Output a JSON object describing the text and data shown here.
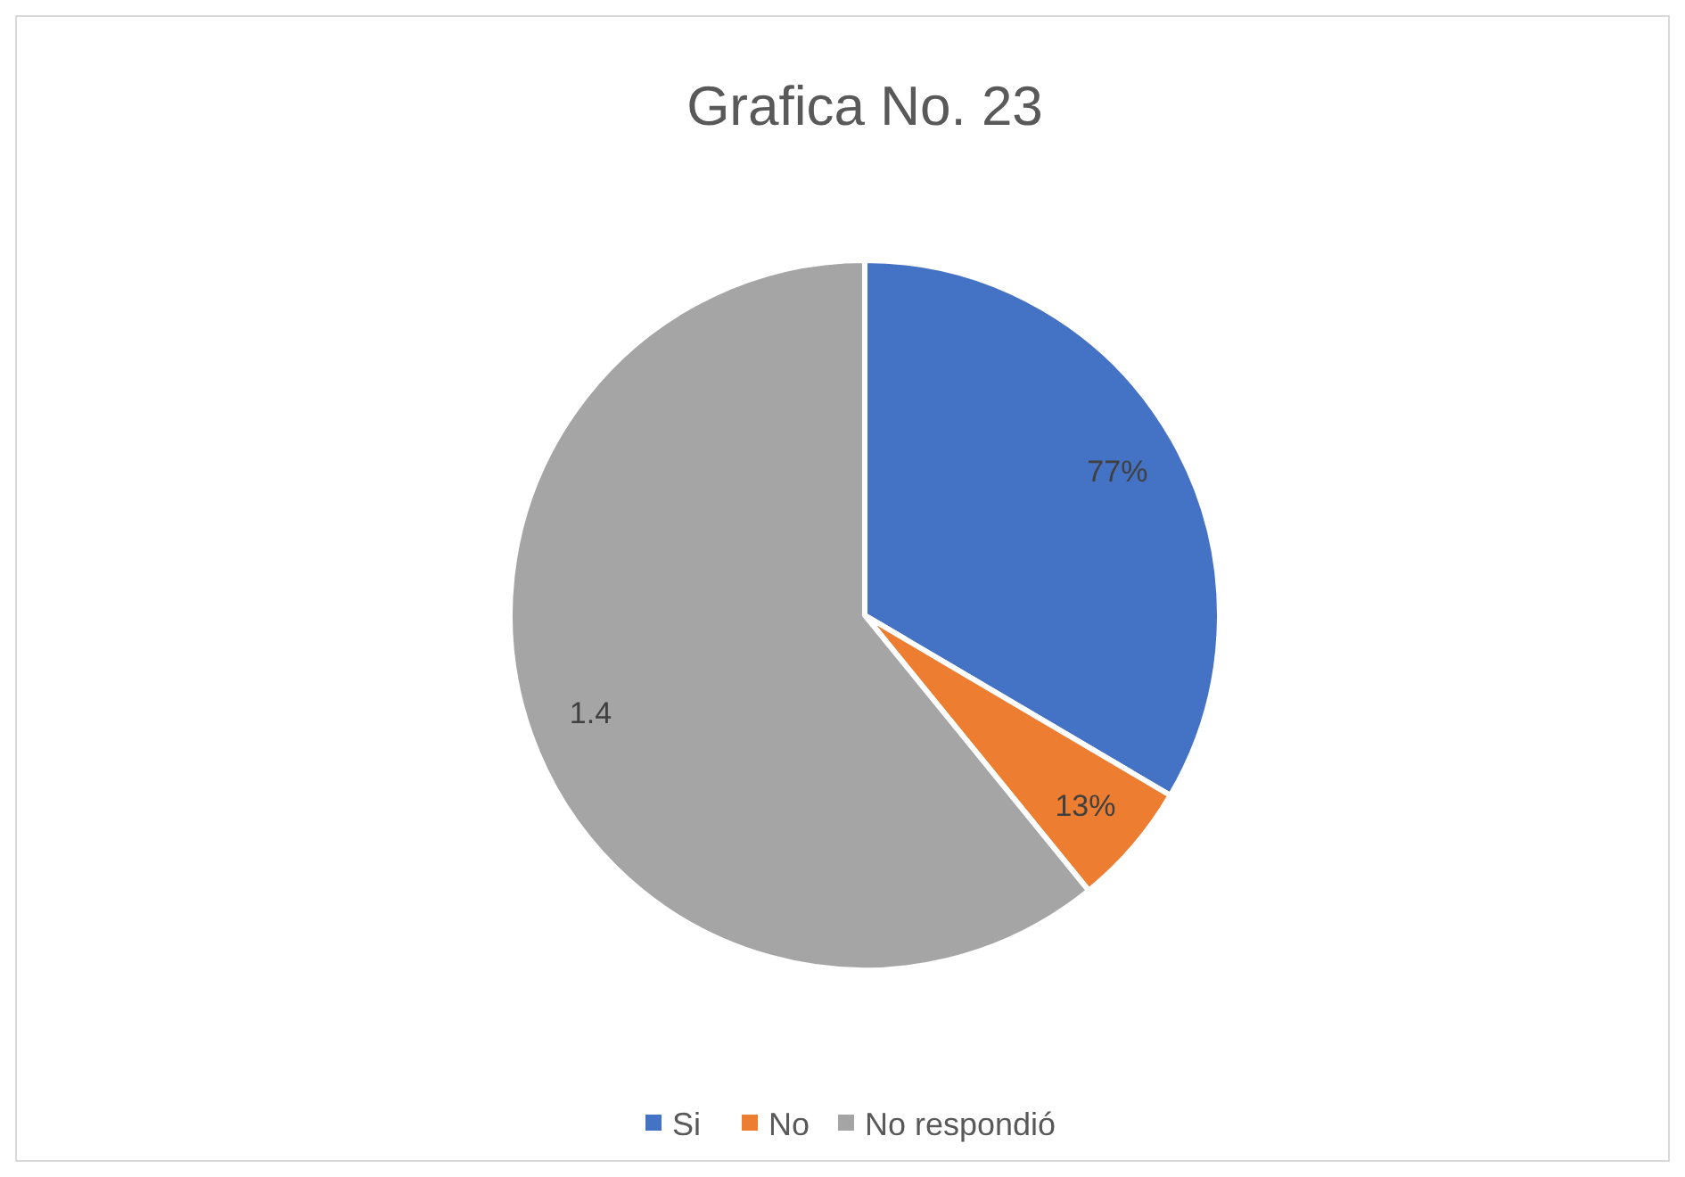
{
  "chart_data": {
    "type": "pie",
    "title": "Grafica No. 23",
    "categories": [
      "Si",
      "No",
      "No respondió"
    ],
    "values": [
      0.77,
      0.13,
      1.4
    ],
    "value_labels": [
      "77%",
      "13%",
      "1.4"
    ],
    "colors": [
      "#4472c4",
      "#ed7d31",
      "#a5a5a5"
    ],
    "legend": "bottom"
  }
}
